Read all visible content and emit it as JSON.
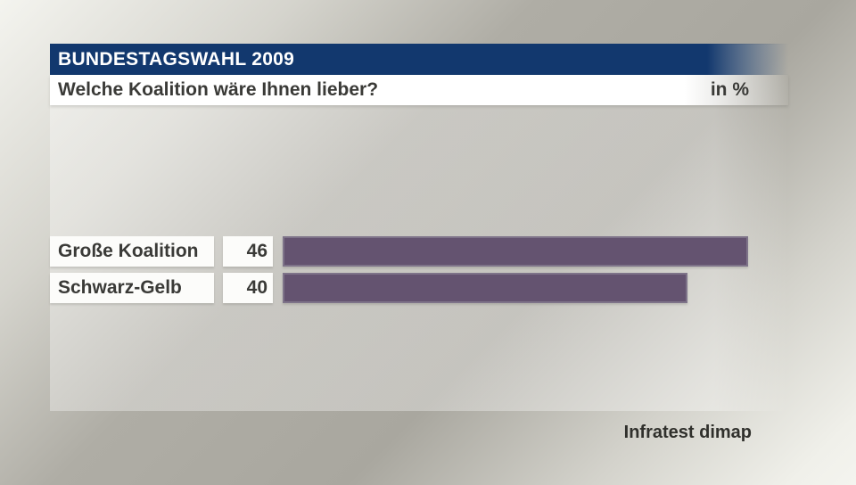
{
  "header": {
    "title": "BUNDESTAGSWAHL 2009",
    "question": "Welche Koalition wäre Ihnen lieber?",
    "unit_label": "in %"
  },
  "chart_data": {
    "type": "bar",
    "orientation": "horizontal",
    "title": "Welche Koalition wäre Ihnen lieber?",
    "unit": "in %",
    "categories": [
      "Große Koalition",
      "Schwarz-Gelb"
    ],
    "values": [
      46,
      40
    ],
    "xlim": [
      0,
      50
    ],
    "grid": false,
    "legend": false
  },
  "footer": {
    "source": "Infratest dimap"
  },
  "colors": {
    "header_bg": "#12386e",
    "header_text": "#ffffff",
    "text_dark": "#3a3a37",
    "box_bg": "#fcfcfa",
    "bar_fill": "#645370",
    "bar_border": "#7e7389"
  }
}
